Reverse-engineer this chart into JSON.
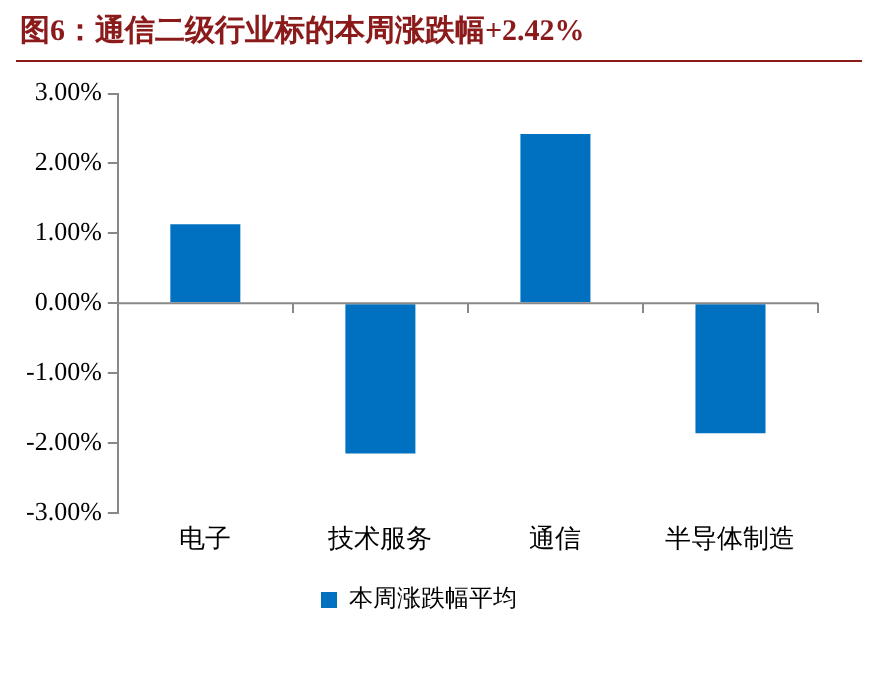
{
  "chart_data": {
    "type": "bar",
    "title": "图6：通信二级行业标的本周涨跌幅+2.42%",
    "categories": [
      "电子",
      "技术服务",
      "通信",
      "半导体制造"
    ],
    "series": [
      {
        "name": "本周涨跌幅平均",
        "color": "#0070c0",
        "values": [
          1.13,
          -2.15,
          2.42,
          -1.86
        ]
      }
    ],
    "ylim": [
      -3,
      3
    ],
    "yticks": [
      {
        "value": -3,
        "label": "-3.00%"
      },
      {
        "value": -2,
        "label": "-2.00%"
      },
      {
        "value": -1,
        "label": "-1.00%"
      },
      {
        "value": 0,
        "label": "0.00%"
      },
      {
        "value": 1,
        "label": "1.00%"
      },
      {
        "value": 2,
        "label": "2.00%"
      },
      {
        "value": 3,
        "label": "3.00%"
      }
    ],
    "ref_lines": [
      {
        "axis": "y",
        "value": 0,
        "color": "#888888"
      }
    ],
    "grid": false,
    "legend": "bottom"
  }
}
